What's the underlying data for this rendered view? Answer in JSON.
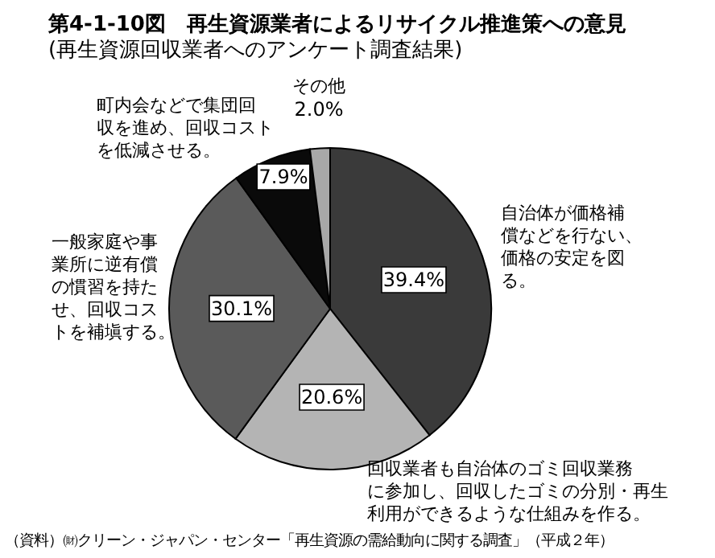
{
  "chart_data": {
    "type": "pie",
    "title": "第4-1-10図　再生資源業者によるリサイクル推進策への意見",
    "subtitle": "(再生資源回収業者へのアンケート調査結果)",
    "categories": [
      "自治体が価格補償などを行ない、価格の安定を図る。",
      "回収業者も自治体のゴミ回収業務に参加し、回収したゴミの分別・再生利用ができるような仕組みを作る。",
      "一般家庭や事業所に逆有償の慣習を持たせ、回収コストを補塡する。",
      "町内会などで集団回収を進め、回収コストを低減させる。",
      "その他"
    ],
    "values": [
      39.4,
      20.6,
      30.1,
      7.9,
      2.0
    ],
    "colors": [
      "#3a3a3a",
      "#b4b4b4",
      "#5a5a5a",
      "#0a0a0a",
      "#a8a8a8"
    ],
    "value_labels": [
      "39.4%",
      "20.6%",
      "30.1%",
      "7.9%",
      "2.0%"
    ],
    "annotations": [
      "（資料）㈶クリーン・ジャパン・センター「再生資源の需給動向に関する調査」（平成２年）"
    ]
  }
}
